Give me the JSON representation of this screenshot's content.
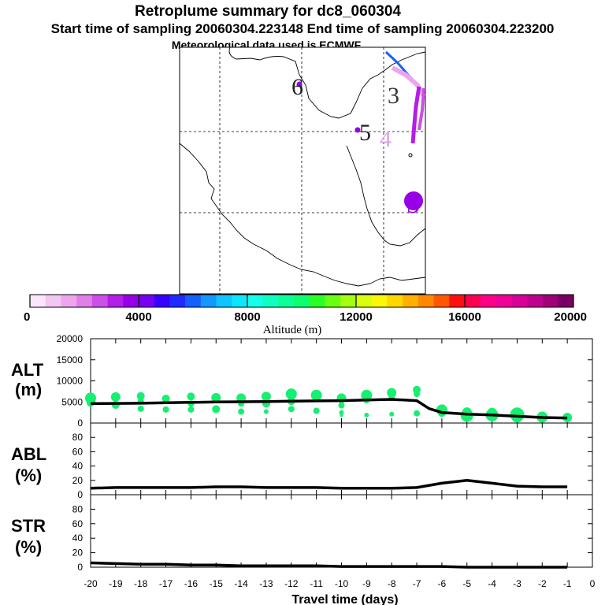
{
  "title": {
    "line1": "Retroplume summary for dc8_060304",
    "line2": "Start time of sampling 20060304.223148     End time of sampling 20060304.223200",
    "line3": "Meteorological data used is ECMWF"
  },
  "map": {
    "markers": [
      {
        "label": "6",
        "color": "#222222"
      },
      {
        "label": "3",
        "color": "#333333"
      },
      {
        "label": "5",
        "color": "#222222"
      },
      {
        "label": "4",
        "color": "#d8a6e6"
      },
      {
        "label": "5",
        "color": "#9a00e0"
      }
    ]
  },
  "colorbar": {
    "label": "Altitude (m)",
    "ticks": [
      "0",
      "4000",
      "8000",
      "12000",
      "16000",
      "20000"
    ],
    "colors": [
      "#fbe6fb",
      "#f3c6f3",
      "#eda6ee",
      "#e07fe8",
      "#cc4fe8",
      "#b41ee8",
      "#9600e8",
      "#7800f0",
      "#3800ff",
      "#1f2cff",
      "#1560ff",
      "#1398ff",
      "#10c4ff",
      "#0de6ff",
      "#14ffe8",
      "#10ffc0",
      "#0dff98",
      "#0dff70",
      "#2aff28",
      "#6aff10",
      "#a4ff10",
      "#d8ff10",
      "#f8f808",
      "#ffd800",
      "#ffb000",
      "#ff8800",
      "#ff5800",
      "#ff1010",
      "#ff0050",
      "#ff0088",
      "#f00098",
      "#d80098",
      "#c00090",
      "#a00078",
      "#780060"
    ]
  },
  "chart_data": [
    {
      "type": "line",
      "name": "ALT",
      "ylabel_line1": "ALT",
      "ylabel_line2": "(m)",
      "xlabel": "Travel time (days)",
      "x_ticks": [
        "-20",
        "-19",
        "-18",
        "-17",
        "-16",
        "-15",
        "-14",
        "-13",
        "-12",
        "-11",
        "-10",
        "-9",
        "-8",
        "-7",
        "-6",
        "-5",
        "-4",
        "-3",
        "-2",
        "-1",
        "0"
      ],
      "xlim": [
        -20,
        0
      ],
      "ylim": [
        0,
        20000
      ],
      "y_ticks": [
        "0",
        "5000",
        "10000",
        "15000",
        "20000"
      ],
      "x": [
        -20,
        -19,
        -18,
        -17,
        -16,
        -15,
        -14,
        -13,
        -12,
        -11,
        -10,
        -9,
        -8,
        -7,
        -6.5,
        -6,
        -5,
        -4,
        -3,
        -2,
        -1
      ],
      "values": [
        4600,
        4650,
        4700,
        4800,
        4900,
        5000,
        5050,
        5100,
        5200,
        5250,
        5300,
        5450,
        5600,
        5300,
        3400,
        2500,
        2100,
        1900,
        1600,
        1300,
        1200
      ],
      "scatter": [
        {
          "x": -20,
          "y": 5900,
          "s": 7
        },
        {
          "x": -20,
          "y": 4800,
          "s": 5
        },
        {
          "x": -19,
          "y": 6200,
          "s": 6
        },
        {
          "x": -19,
          "y": 4300,
          "s": 5
        },
        {
          "x": -18,
          "y": 6400,
          "s": 5
        },
        {
          "x": -18,
          "y": 5200,
          "s": 4
        },
        {
          "x": -18,
          "y": 3400,
          "s": 4
        },
        {
          "x": -17,
          "y": 5800,
          "s": 5
        },
        {
          "x": -17,
          "y": 3200,
          "s": 4
        },
        {
          "x": -16,
          "y": 6300,
          "s": 5
        },
        {
          "x": -16,
          "y": 4600,
          "s": 4
        },
        {
          "x": -16,
          "y": 3200,
          "s": 4
        },
        {
          "x": -15,
          "y": 6000,
          "s": 6
        },
        {
          "x": -15,
          "y": 3300,
          "s": 5
        },
        {
          "x": -14,
          "y": 5900,
          "s": 6
        },
        {
          "x": -14,
          "y": 4600,
          "s": 4
        },
        {
          "x": -14,
          "y": 2700,
          "s": 4
        },
        {
          "x": -13,
          "y": 6300,
          "s": 6
        },
        {
          "x": -13,
          "y": 4600,
          "s": 5
        },
        {
          "x": -13,
          "y": 2700,
          "s": 3
        },
        {
          "x": -12,
          "y": 6900,
          "s": 7
        },
        {
          "x": -12,
          "y": 5200,
          "s": 5
        },
        {
          "x": -12,
          "y": 3300,
          "s": 4
        },
        {
          "x": -11,
          "y": 6600,
          "s": 7
        },
        {
          "x": -11,
          "y": 2900,
          "s": 4
        },
        {
          "x": -10,
          "y": 5900,
          "s": 6
        },
        {
          "x": -10,
          "y": 4200,
          "s": 4
        },
        {
          "x": -10,
          "y": 2500,
          "s": 3
        },
        {
          "x": -10,
          "y": 1800,
          "s": 2
        },
        {
          "x": -9,
          "y": 6600,
          "s": 7
        },
        {
          "x": -9,
          "y": 5400,
          "s": 4
        },
        {
          "x": -9,
          "y": 1900,
          "s": 3
        },
        {
          "x": -8,
          "y": 7200,
          "s": 6
        },
        {
          "x": -8,
          "y": 6000,
          "s": 4
        },
        {
          "x": -8,
          "y": 2100,
          "s": 3
        },
        {
          "x": -7,
          "y": 7900,
          "s": 5
        },
        {
          "x": -7,
          "y": 6900,
          "s": 4
        },
        {
          "x": -7,
          "y": 2300,
          "s": 4
        },
        {
          "x": -6,
          "y": 3100,
          "s": 7
        },
        {
          "x": -6,
          "y": 2400,
          "s": 5
        },
        {
          "x": -5,
          "y": 1800,
          "s": 8
        },
        {
          "x": -5,
          "y": 2600,
          "s": 6
        },
        {
          "x": -4,
          "y": 1900,
          "s": 8
        },
        {
          "x": -4,
          "y": 2500,
          "s": 6
        },
        {
          "x": -3,
          "y": 2000,
          "s": 9
        },
        {
          "x": -3,
          "y": 1400,
          "s": 7
        },
        {
          "x": -2,
          "y": 1400,
          "s": 7
        },
        {
          "x": -1,
          "y": 1300,
          "s": 6
        }
      ]
    },
    {
      "type": "line",
      "name": "ABL",
      "ylabel_line1": "ABL",
      "ylabel_line2": "(%)",
      "xlim": [
        -20,
        0
      ],
      "ylim": [
        0,
        100
      ],
      "y_ticks": [
        "0",
        "20",
        "40",
        "60",
        "80"
      ],
      "x": [
        -20,
        -19,
        -18,
        -17,
        -16,
        -15,
        -14,
        -13,
        -12,
        -11,
        -10,
        -9,
        -8,
        -7,
        -6,
        -5,
        -4,
        -3,
        -2,
        -1
      ],
      "values": [
        9,
        10,
        10,
        10,
        10,
        11,
        11,
        10,
        10,
        10,
        9,
        9,
        9,
        10,
        16,
        20,
        16,
        12,
        11,
        11
      ]
    },
    {
      "type": "line",
      "name": "STR",
      "ylabel_line1": "STR",
      "ylabel_line2": "(%)",
      "xlim": [
        -20,
        0
      ],
      "ylim": [
        0,
        100
      ],
      "y_ticks": [
        "0",
        "20",
        "40",
        "60",
        "80"
      ],
      "x": [
        -20,
        -19,
        -18,
        -17,
        -16,
        -15,
        -14,
        -13,
        -12,
        -11,
        -10,
        -9,
        -8,
        -7,
        -6,
        -5,
        -4,
        -3,
        -2,
        -1
      ],
      "values": [
        6,
        5,
        4,
        4,
        3,
        3,
        2,
        2,
        2,
        2,
        1,
        1,
        1,
        1,
        1,
        0,
        0,
        0,
        0,
        0
      ]
    }
  ]
}
